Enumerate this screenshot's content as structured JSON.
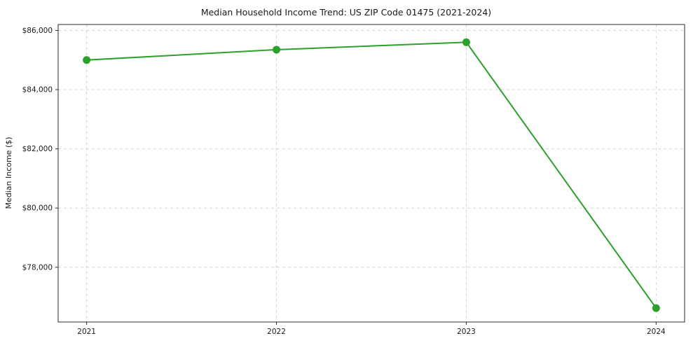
{
  "chart_data": {
    "type": "line",
    "title": "Median Household Income Trend: US ZIP Code 01475 (2021-2024)",
    "xlabel": "",
    "ylabel": "Median Income ($)",
    "series": [
      {
        "name": "Median Household Income",
        "x": [
          2021,
          2022,
          2023,
          2024
        ],
        "values": [
          85000,
          85350,
          85600,
          76620
        ]
      }
    ],
    "xlim": [
      2020.85,
      2024.15
    ],
    "ylim": [
      76150,
      86200
    ],
    "xticks": {
      "values": [
        2021,
        2022,
        2023,
        2024
      ],
      "labels": [
        "2021",
        "2022",
        "2023",
        "2024"
      ]
    },
    "yticks": {
      "values": [
        78000,
        80000,
        82000,
        84000,
        86000
      ],
      "labels": [
        "$78,000",
        "$80,000",
        "$82,000",
        "$84,000",
        "$86,000"
      ]
    },
    "grid": true,
    "grid_style": "dashed",
    "legend_position": "none",
    "colors": {
      "line": "#2ca02c",
      "marker": "#2ca02c",
      "grid": "#d3d3d3",
      "spine": "#2b2b2b",
      "background": "#ffffff"
    }
  }
}
